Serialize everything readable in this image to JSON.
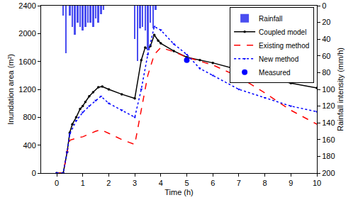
{
  "chart_data": {
    "type": "line",
    "x_label": "Time (h)",
    "y_label": "Inundation area (m²)",
    "y2_label": "Rainfall intensity (mm/h)",
    "xlim": [
      -0.6,
      10
    ],
    "xticks": [
      0,
      1,
      2,
      3,
      4,
      5,
      6,
      7,
      8,
      9,
      10
    ],
    "ylim": [
      0,
      2400
    ],
    "yticks": [
      0,
      400,
      800,
      1200,
      1600,
      2000,
      2400
    ],
    "y2lim": [
      200,
      0
    ],
    "y2ticks": [
      0,
      20,
      40,
      60,
      80,
      100,
      120,
      140,
      160,
      180,
      200
    ],
    "grid": false,
    "legend": "top-right",
    "series": [
      {
        "name": "Rainfall",
        "type": "bar",
        "axis": "y2",
        "color": "#4a4ef0",
        "x": [
          0.25,
          0.35,
          0.5,
          0.6,
          0.7,
          0.8,
          0.9,
          1.0,
          1.1,
          1.2,
          1.3,
          1.4,
          1.5,
          1.6,
          1.7,
          1.8,
          3.0,
          3.1,
          3.2,
          3.3,
          3.4,
          3.5,
          3.6,
          3.7,
          3.8
        ],
        "values": [
          12,
          57,
          12,
          25,
          35,
          20,
          25,
          30,
          25,
          20,
          20,
          25,
          15,
          20,
          10,
          5,
          40,
          66,
          27,
          25,
          30,
          53,
          20,
          27,
          5
        ]
      },
      {
        "name": "Coupled model",
        "type": "line",
        "color": "#000000",
        "line_style": "solid",
        "marker": "circle",
        "x": [
          0,
          0.25,
          0.4,
          0.5,
          0.6,
          0.75,
          0.9,
          1,
          1.1,
          1.25,
          1.4,
          1.6,
          1.75,
          2,
          2.5,
          3,
          3.25,
          3.4,
          3.5,
          3.6,
          3.75,
          3.9,
          4,
          4.5,
          5,
          5.5,
          6,
          7,
          8,
          9,
          10
        ],
        "values": [
          0,
          0,
          300,
          580,
          700,
          800,
          920,
          960,
          1020,
          1100,
          1160,
          1230,
          1240,
          1200,
          1130,
          1070,
          1620,
          1800,
          1780,
          1820,
          1980,
          1900,
          1860,
          1750,
          1660,
          1620,
          1580,
          1480,
          1380,
          1290,
          1220
        ]
      },
      {
        "name": "Existing method",
        "type": "line",
        "color": "#ff0000",
        "line_style": "dash",
        "marker": "none",
        "x": [
          0,
          0.25,
          0.4,
          0.5,
          0.75,
          1,
          1.5,
          1.7,
          2,
          2.5,
          3,
          3.25,
          3.5,
          3.75,
          4,
          4.5,
          5,
          6,
          7,
          8,
          9,
          10
        ],
        "values": [
          0,
          0,
          300,
          470,
          500,
          520,
          600,
          620,
          570,
          480,
          410,
          900,
          1400,
          1700,
          1800,
          1740,
          1660,
          1550,
          1380,
          1150,
          900,
          700
        ]
      },
      {
        "name": "New method",
        "type": "line",
        "color": "#0000ff",
        "line_style": "dot",
        "marker": "triangle-down",
        "x": [
          0,
          0.25,
          0.4,
          0.5,
          0.75,
          1,
          1.25,
          1.5,
          1.7,
          2,
          2.5,
          3,
          3.25,
          3.5,
          3.75,
          4,
          4.5,
          5,
          5.5,
          6,
          7,
          8,
          9,
          10
        ],
        "values": [
          0,
          0,
          300,
          560,
          750,
          870,
          960,
          1040,
          1100,
          1000,
          900,
          800,
          1200,
          1700,
          2100,
          2050,
          1850,
          1700,
          1500,
          1400,
          1200,
          1080,
          960,
          880
        ]
      },
      {
        "name": "Measured",
        "type": "scatter",
        "color": "#0000ff",
        "marker": "circle",
        "x": [
          5
        ],
        "values": [
          1620
        ]
      }
    ]
  }
}
